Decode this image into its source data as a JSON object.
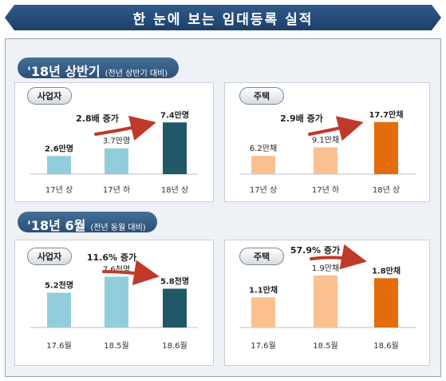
{
  "title": "한 눈에 보는 임대등록 실적",
  "sections": [
    {
      "heading": "'18년 상반기",
      "sub": "(전년 상반기 대비)"
    },
    {
      "heading": "'18년 6월",
      "sub": "(전년 동월 대비)"
    }
  ],
  "colors": {
    "light_blue": "#92cddc",
    "dark_teal": "#215868",
    "light_orange": "#fac090",
    "orange": "#e46c0a",
    "arrow_red": "#c0392b"
  },
  "chart_data": [
    {
      "type": "bar",
      "panel_label": "사업자",
      "increase_label": "2.8배 증가",
      "categories": [
        "17년 상",
        "17년 하",
        "18년 상"
      ],
      "values": [
        2.6,
        3.7,
        7.4
      ],
      "value_labels": [
        "2.6만명",
        "3.7만명",
        "7.4만명"
      ],
      "unit": "만명",
      "ylim": [
        0,
        8
      ]
    },
    {
      "type": "bar",
      "panel_label": "주택",
      "increase_label": "2.9배 증가",
      "categories": [
        "17년 상",
        "17년 하",
        "18년 상"
      ],
      "values": [
        6.2,
        9.1,
        17.7
      ],
      "value_labels": [
        "6.2만채",
        "9.1만채",
        "17.7만채"
      ],
      "unit": "만채",
      "ylim": [
        0,
        19
      ]
    },
    {
      "type": "bar",
      "panel_label": "사업자",
      "increase_label": "11.6% 증가",
      "categories": [
        "17.6월",
        "18.5월",
        "18.6월"
      ],
      "values": [
        5.2,
        7.6,
        5.8
      ],
      "value_labels": [
        "5.2천명",
        "7.6천명",
        "5.8천명"
      ],
      "unit": "천명",
      "ylim": [
        0,
        8.6
      ]
    },
    {
      "type": "bar",
      "panel_label": "주택",
      "increase_label": "57.9% 증가",
      "categories": [
        "17.6월",
        "18.5월",
        "18.6월"
      ],
      "values": [
        1.1,
        1.9,
        1.8
      ],
      "value_labels": [
        "1.1만채",
        "1.9만채",
        "1.8만채"
      ],
      "unit": "만채",
      "ylim": [
        0,
        2.1
      ]
    }
  ]
}
